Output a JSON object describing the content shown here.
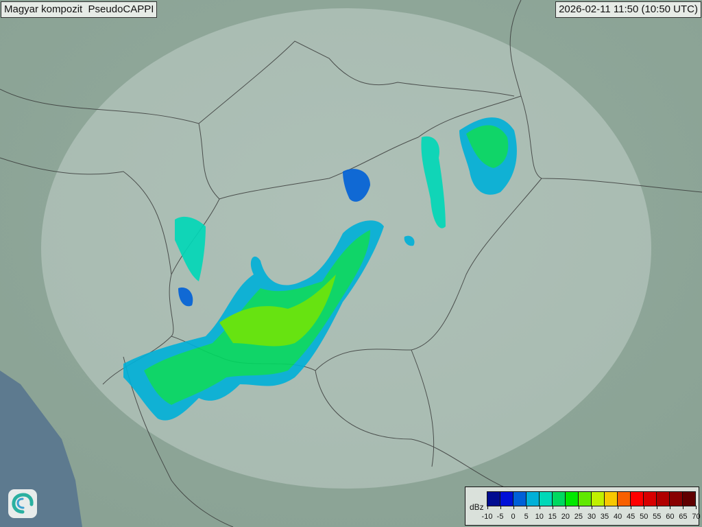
{
  "header": {
    "title": "Magyar kompozit  PseudoCAPPI",
    "timestamp": "2026-02-11 11:50 (10:50 UTC)"
  },
  "logo": {
    "icon": "swirl-logo-icon"
  },
  "legend": {
    "unit": "dBz",
    "ticks": [
      "-10",
      "-5",
      "0",
      "5",
      "10",
      "15",
      "20",
      "25",
      "30",
      "35",
      "40",
      "45",
      "50",
      "55",
      "60",
      "65",
      "70"
    ],
    "colors": [
      "#000c90",
      "#0010d8",
      "#0060d8",
      "#00b0d8",
      "#00d8b8",
      "#00d860",
      "#00e800",
      "#60e800",
      "#c0f000",
      "#f8c800",
      "#f86000",
      "#ff0000",
      "#d80000",
      "#b00000",
      "#880000",
      "#600000"
    ]
  },
  "map": {
    "land_color": "#8fa79a",
    "sea_color": "#5d7a8f",
    "coverage_color": "#dfe8e4"
  }
}
